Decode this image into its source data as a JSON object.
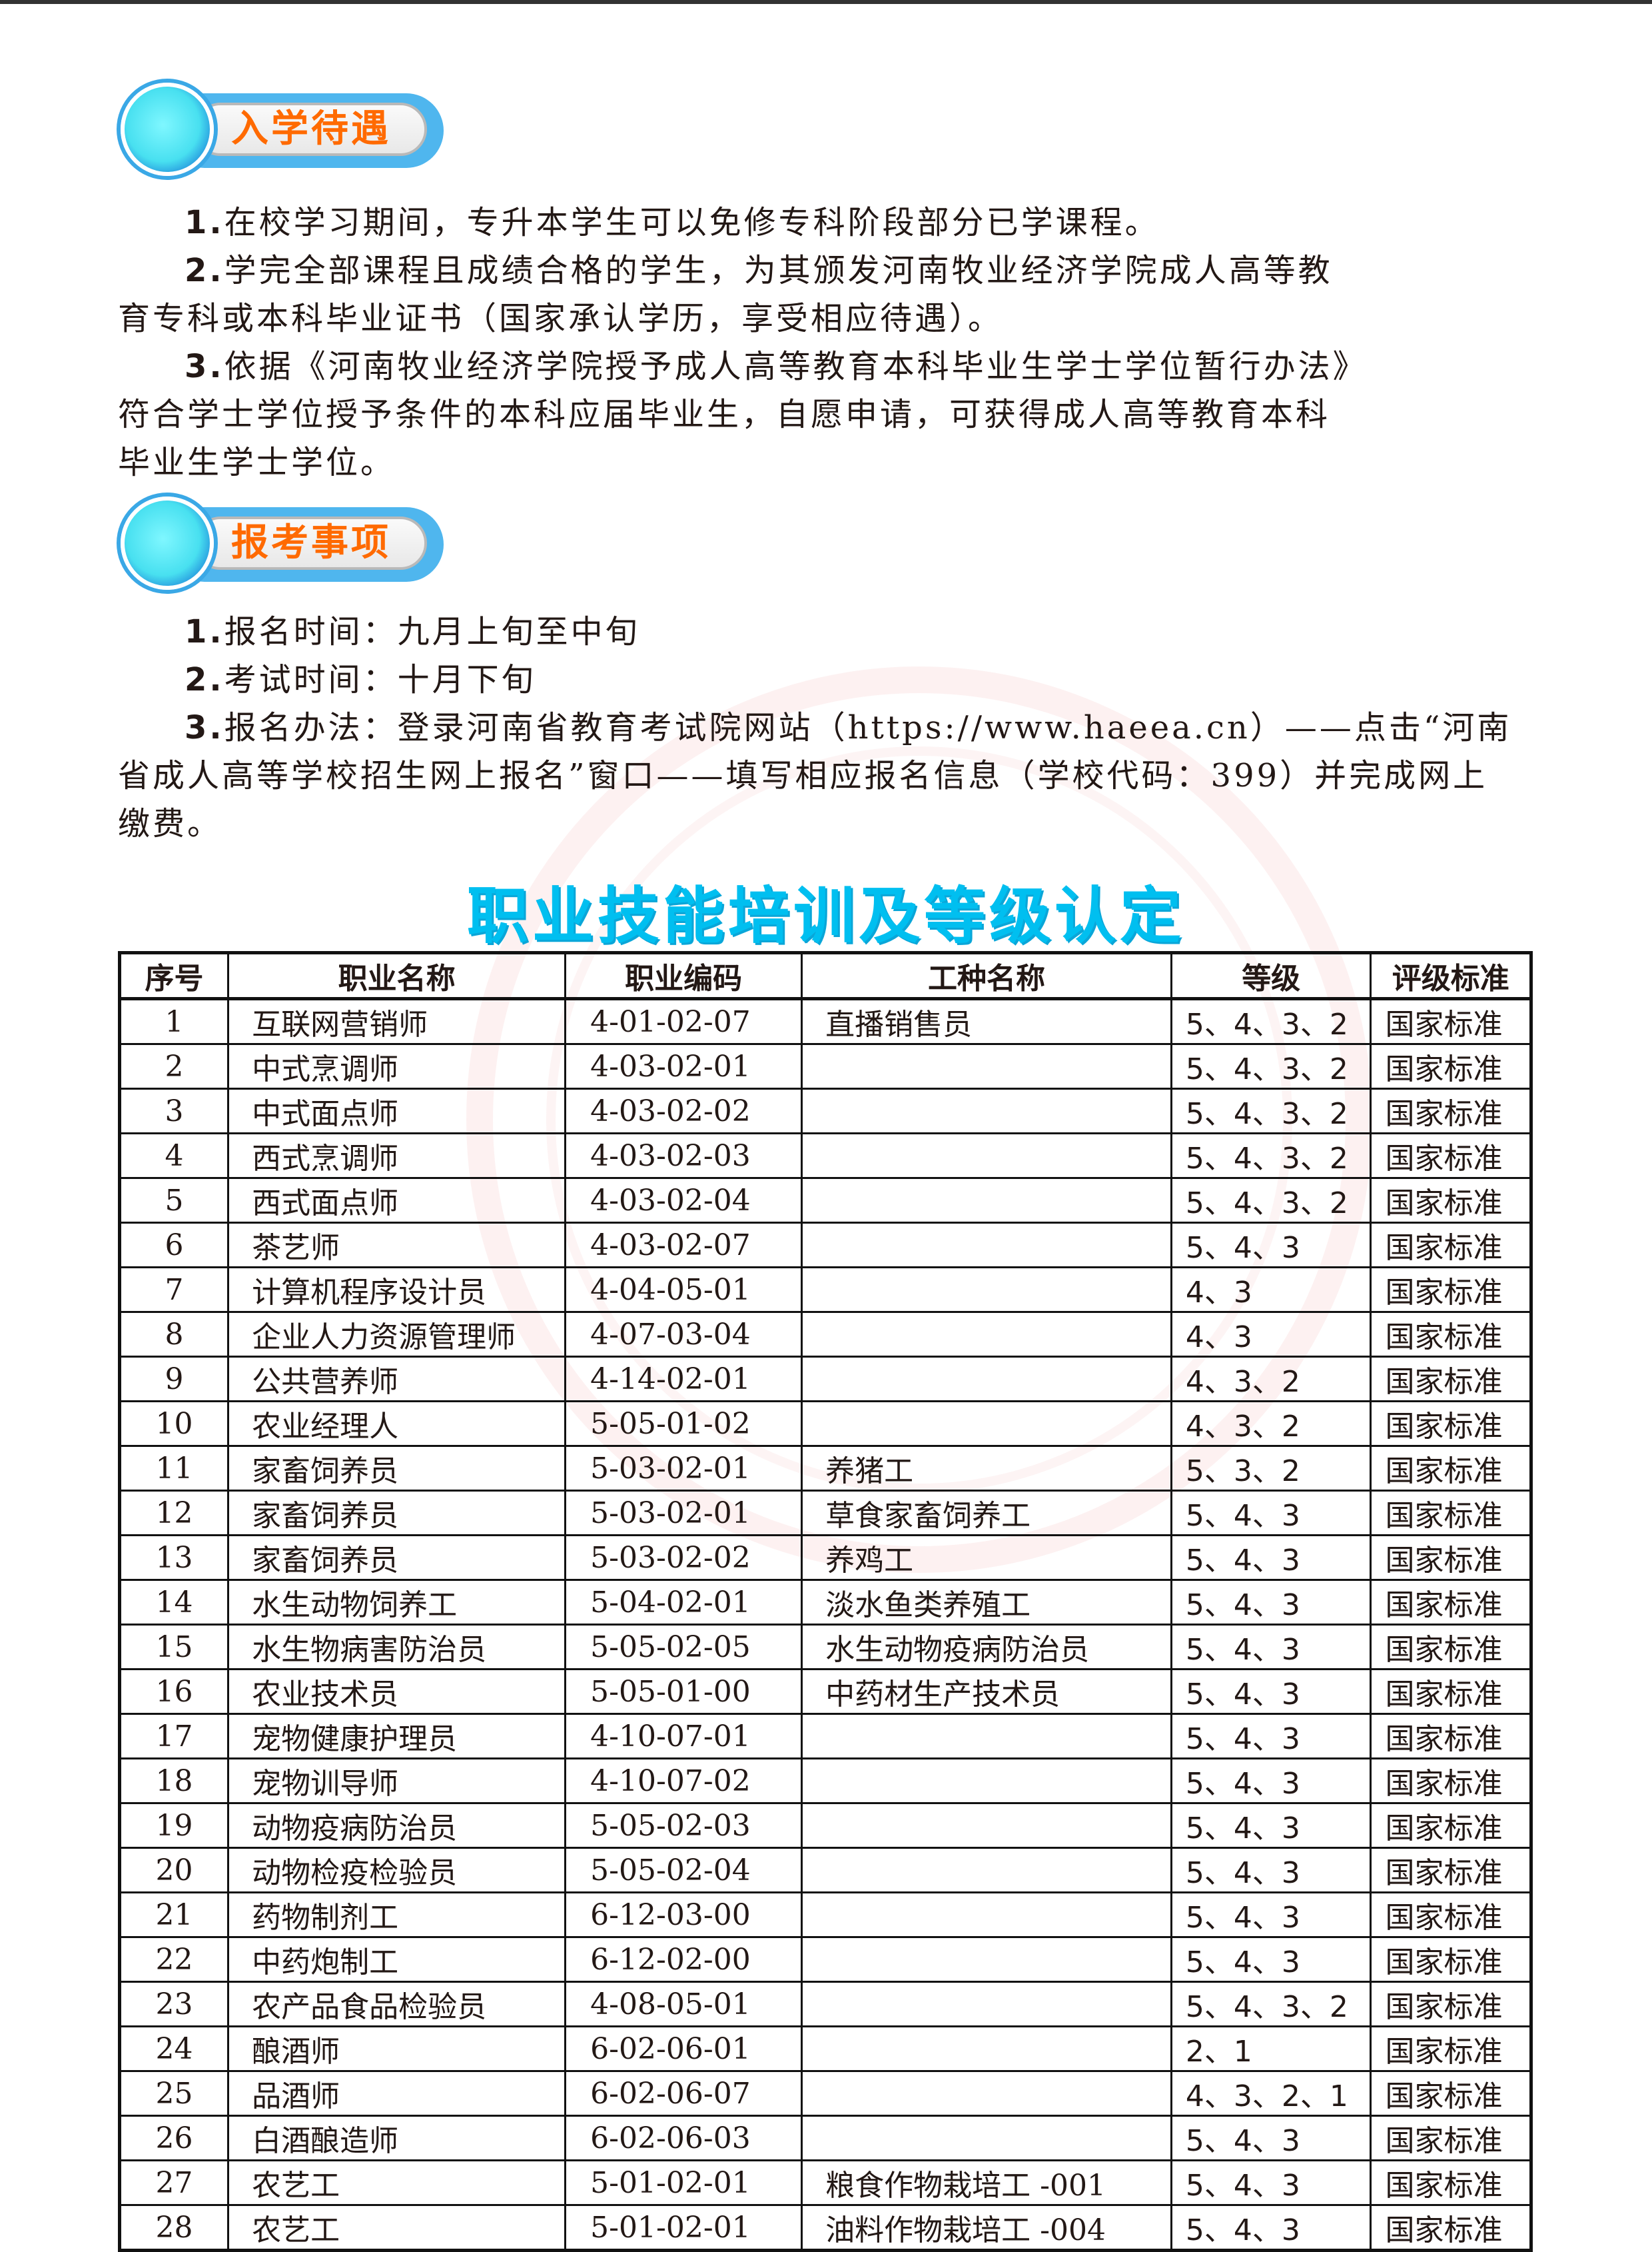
{
  "section1": {
    "badge": "入学待遇",
    "paragraphs": [
      {
        "num": "1.",
        "lines": [
          "在校学习期间，专升本学生可以免修专科阶段部分已学课程。"
        ]
      },
      {
        "num": "2.",
        "lines": [
          "学完全部课程且成绩合格的学生，为其颁发河南牧业经济学院成人高等教",
          "育专科或本科毕业证书（国家承认学历，享受相应待遇）。"
        ]
      },
      {
        "num": "3.",
        "lines": [
          "依据《河南牧业经济学院授予成人高等教育本科毕业生学士学位暂行办法》",
          "符合学士学位授予条件的本科应届毕业生，自愿申请，可获得成人高等教育本科",
          "毕业生学士学位。"
        ]
      }
    ]
  },
  "section2": {
    "badge": "报考事项",
    "paragraphs": [
      {
        "num": "1.",
        "lines": [
          "报名时间：九月上旬至中旬"
        ]
      },
      {
        "num": "2.",
        "lines": [
          "考试时间：十月下旬"
        ]
      },
      {
        "num": "3.",
        "lines": [
          "报名办法：登录河南省教育考试院网站（https://www.haeea.cn）——点击“河南",
          "省成人高等学校招生网上报名”窗口——填写相应报名信息（学校代码：399）并完成网上",
          "缴费。"
        ]
      }
    ]
  },
  "table_title": "职业技能培训及等级认定",
  "table": {
    "headers": [
      "序号",
      "职业名称",
      "职业编码",
      "工种名称",
      "等级",
      "评级标准"
    ],
    "rows": [
      [
        "1",
        "互联网营销师",
        "4-01-02-07",
        "直播销售员",
        "5、4、3、2",
        "国家标准"
      ],
      [
        "2",
        "中式烹调师",
        "4-03-02-01",
        "",
        "5、4、3、2",
        "国家标准"
      ],
      [
        "3",
        "中式面点师",
        "4-03-02-02",
        "",
        "5、4、3、2",
        "国家标准"
      ],
      [
        "4",
        "西式烹调师",
        "4-03-02-03",
        "",
        "5、4、3、2",
        "国家标准"
      ],
      [
        "5",
        "西式面点师",
        "4-03-02-04",
        "",
        "5、4、3、2",
        "国家标准"
      ],
      [
        "6",
        "茶艺师",
        "4-03-02-07",
        "",
        "5、4、3",
        "国家标准"
      ],
      [
        "7",
        "计算机程序设计员",
        "4-04-05-01",
        "",
        "4、3",
        "国家标准"
      ],
      [
        "8",
        "企业人力资源管理师",
        "4-07-03-04",
        "",
        "4、3",
        "国家标准"
      ],
      [
        "9",
        "公共营养师",
        "4-14-02-01",
        "",
        "4、3、2",
        "国家标准"
      ],
      [
        "10",
        "农业经理人",
        "5-05-01-02",
        "",
        "4、3、2",
        "国家标准"
      ],
      [
        "11",
        "家畜饲养员",
        "5-03-02-01",
        "养猪工",
        "5、3、2",
        "国家标准"
      ],
      [
        "12",
        "家畜饲养员",
        "5-03-02-01",
        "草食家畜饲养工",
        "5、4、3",
        "国家标准"
      ],
      [
        "13",
        "家畜饲养员",
        "5-03-02-02",
        "养鸡工",
        "5、4、3",
        "国家标准"
      ],
      [
        "14",
        "水生动物饲养工",
        "5-04-02-01",
        "淡水鱼类养殖工",
        "5、4、3",
        "国家标准"
      ],
      [
        "15",
        "水生物病害防治员",
        "5-05-02-05",
        "水生动物疫病防治员",
        "5、4、3",
        "国家标准"
      ],
      [
        "16",
        "农业技术员",
        "5-05-01-00",
        "中药材生产技术员",
        "5、4、3",
        "国家标准"
      ],
      [
        "17",
        "宠物健康护理员",
        "4-10-07-01",
        "",
        "5、4、3",
        "国家标准"
      ],
      [
        "18",
        "宠物训导师",
        "4-10-07-02",
        "",
        "5、4、3",
        "国家标准"
      ],
      [
        "19",
        "动物疫病防治员",
        "5-05-02-03",
        "",
        "5、4、3",
        "国家标准"
      ],
      [
        "20",
        "动物检疫检验员",
        "5-05-02-04",
        "",
        "5、4、3",
        "国家标准"
      ],
      [
        "21",
        "药物制剂工",
        "6-12-03-00",
        "",
        "5、4、3",
        "国家标准"
      ],
      [
        "22",
        "中药炮制工",
        "6-12-02-00",
        "",
        "5、4、3",
        "国家标准"
      ],
      [
        "23",
        "农产品食品检验员",
        "4-08-05-01",
        "",
        "5、4、3、2",
        "国家标准"
      ],
      [
        "24",
        "酿酒师",
        "6-02-06-01",
        "",
        "2、1",
        "国家标准"
      ],
      [
        "25",
        "品酒师",
        "6-02-06-07",
        "",
        "4、3、2、1",
        "国家标准"
      ],
      [
        "26",
        "白酒酿造师",
        "6-02-06-03",
        "",
        "5、4、3",
        "国家标准"
      ],
      [
        "27",
        "农艺工",
        "5-01-02-01",
        "粮食作物栽培工 -001",
        "5、4、3",
        "国家标准"
      ],
      [
        "28",
        "农艺工",
        "5-01-02-01",
        "油料作物栽培工 -004",
        "5、4、3",
        "国家标准"
      ]
    ]
  },
  "colors": {
    "badge_text": "#ff6a00",
    "badge_blue": "#4fb6ee",
    "title": "#00bff0"
  }
}
